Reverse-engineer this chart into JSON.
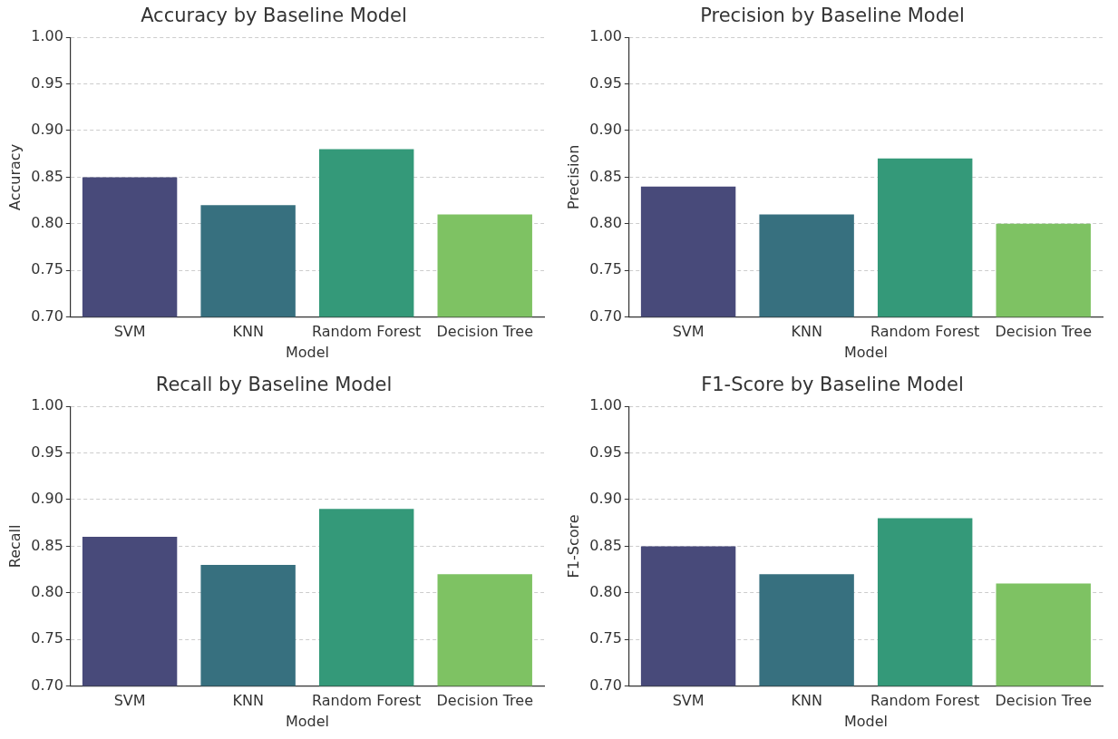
{
  "chart_data": [
    {
      "type": "bar",
      "title": "Accuracy by Baseline Model",
      "xlabel": "Model",
      "ylabel": "Accuracy",
      "categories": [
        "SVM",
        "KNN",
        "Random Forest",
        "Decision Tree"
      ],
      "values": [
        0.85,
        0.82,
        0.88,
        0.81
      ],
      "colors": [
        "#484a7a",
        "#37707f",
        "#349979",
        "#7ec263"
      ],
      "ylim": [
        0.7,
        1.0
      ],
      "yticks": [
        {
          "value": 0.7,
          "label": "0.70"
        },
        {
          "value": 0.75,
          "label": "0.75"
        },
        {
          "value": 0.8,
          "label": "0.80"
        },
        {
          "value": 0.85,
          "label": "0.85"
        },
        {
          "value": 0.9,
          "label": "0.90"
        },
        {
          "value": 0.95,
          "label": "0.95"
        },
        {
          "value": 1.0,
          "label": "1.00"
        }
      ],
      "grid": "y"
    },
    {
      "type": "bar",
      "title": "Precision by Baseline Model",
      "xlabel": "Model",
      "ylabel": "Precision",
      "categories": [
        "SVM",
        "KNN",
        "Random Forest",
        "Decision Tree"
      ],
      "values": [
        0.84,
        0.81,
        0.87,
        0.8
      ],
      "colors": [
        "#484a7a",
        "#37707f",
        "#349979",
        "#7ec263"
      ],
      "ylim": [
        0.7,
        1.0
      ],
      "yticks": [
        {
          "value": 0.7,
          "label": "0.70"
        },
        {
          "value": 0.75,
          "label": "0.75"
        },
        {
          "value": 0.8,
          "label": "0.80"
        },
        {
          "value": 0.85,
          "label": "0.85"
        },
        {
          "value": 0.9,
          "label": "0.90"
        },
        {
          "value": 0.95,
          "label": "0.95"
        },
        {
          "value": 1.0,
          "label": "1.00"
        }
      ],
      "grid": "y"
    },
    {
      "type": "bar",
      "title": "Recall by Baseline Model",
      "xlabel": "Model",
      "ylabel": "Recall",
      "categories": [
        "SVM",
        "KNN",
        "Random Forest",
        "Decision Tree"
      ],
      "values": [
        0.86,
        0.83,
        0.89,
        0.82
      ],
      "colors": [
        "#484a7a",
        "#37707f",
        "#349979",
        "#7ec263"
      ],
      "ylim": [
        0.7,
        1.0
      ],
      "yticks": [
        {
          "value": 0.7,
          "label": "0.70"
        },
        {
          "value": 0.75,
          "label": "0.75"
        },
        {
          "value": 0.8,
          "label": "0.80"
        },
        {
          "value": 0.85,
          "label": "0.85"
        },
        {
          "value": 0.9,
          "label": "0.90"
        },
        {
          "value": 0.95,
          "label": "0.95"
        },
        {
          "value": 1.0,
          "label": "1.00"
        }
      ],
      "grid": "y"
    },
    {
      "type": "bar",
      "title": "F1-Score by Baseline Model",
      "xlabel": "Model",
      "ylabel": "F1-Score",
      "categories": [
        "SVM",
        "KNN",
        "Random Forest",
        "Decision Tree"
      ],
      "values": [
        0.85,
        0.82,
        0.88,
        0.81
      ],
      "colors": [
        "#484a7a",
        "#37707f",
        "#349979",
        "#7ec263"
      ],
      "ylim": [
        0.7,
        1.0
      ],
      "yticks": [
        {
          "value": 0.7,
          "label": "0.70"
        },
        {
          "value": 0.75,
          "label": "0.75"
        },
        {
          "value": 0.8,
          "label": "0.80"
        },
        {
          "value": 0.85,
          "label": "0.85"
        },
        {
          "value": 0.9,
          "label": "0.90"
        },
        {
          "value": 0.95,
          "label": "0.95"
        },
        {
          "value": 1.0,
          "label": "1.00"
        }
      ],
      "grid": "y"
    }
  ]
}
